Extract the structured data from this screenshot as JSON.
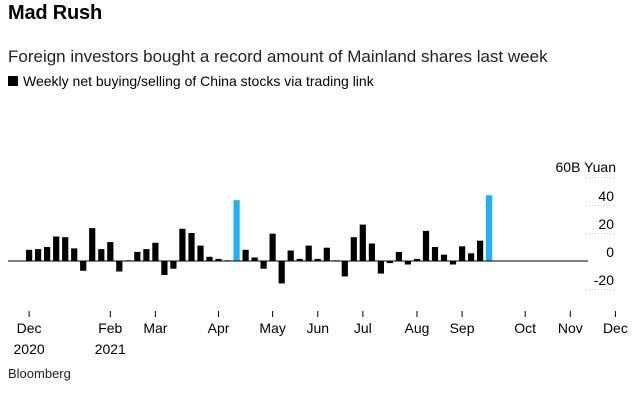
{
  "title": "Mad Rush",
  "subtitle": "Foreign investors bought a record amount of Mainland shares last week",
  "source": "Bloomberg",
  "colors": {
    "bar": "#000000",
    "highlight": "#1ab2ff",
    "grid": "#cccccc",
    "zero": "#000000"
  },
  "chart_data": {
    "type": "bar",
    "title": "Mad Rush",
    "subtitle": "Foreign investors bought a record amount of Mainland shares last week",
    "legend": "Weekly net buying/selling of China stocks via trading link",
    "ylabel": "60B Yuan",
    "ylim": [
      -20,
      60
    ],
    "yticks": [
      -20,
      0,
      20,
      40
    ],
    "ytick_labels": [
      "-20",
      "0",
      "20",
      "40"
    ],
    "grid": true,
    "x_labels": [
      {
        "label": "Dec",
        "index": 0
      },
      {
        "label": "Feb",
        "index": 9
      },
      {
        "label": "Mar",
        "index": 14
      },
      {
        "label": "Apr",
        "index": 21
      },
      {
        "label": "May",
        "index": 27
      },
      {
        "label": "Jun",
        "index": 32
      },
      {
        "label": "Jul",
        "index": 37
      },
      {
        "label": "Aug",
        "index": 43
      },
      {
        "label": "Sep",
        "index": 48
      },
      {
        "label": "Oct",
        "index": 55
      },
      {
        "label": "Nov",
        "index": 60
      },
      {
        "label": "Dec",
        "index": 65
      }
    ],
    "x_year_labels": [
      {
        "label": "2020",
        "index": 0
      },
      {
        "label": "2021",
        "index": 9
      }
    ],
    "values": [
      8,
      8.5,
      10,
      17.5,
      17,
      9,
      -7,
      23.5,
      8.5,
      13.5,
      -7.5,
      0.5,
      6.5,
      8.5,
      13,
      -10,
      -5.5,
      23,
      20,
      11,
      3,
      1.5,
      0.5,
      43.5,
      8,
      2.5,
      -5.5,
      19.5,
      -16,
      7.5,
      1.5,
      11,
      1.5,
      9.5,
      0.5,
      -11,
      17,
      26,
      12.5,
      -9,
      -1.5,
      6.5,
      -2.5,
      1.5,
      21.5,
      10,
      4.5,
      -2.5,
      10.5,
      5.5,
      14.5,
      47
    ],
    "highlight": [
      23,
      51
    ]
  }
}
